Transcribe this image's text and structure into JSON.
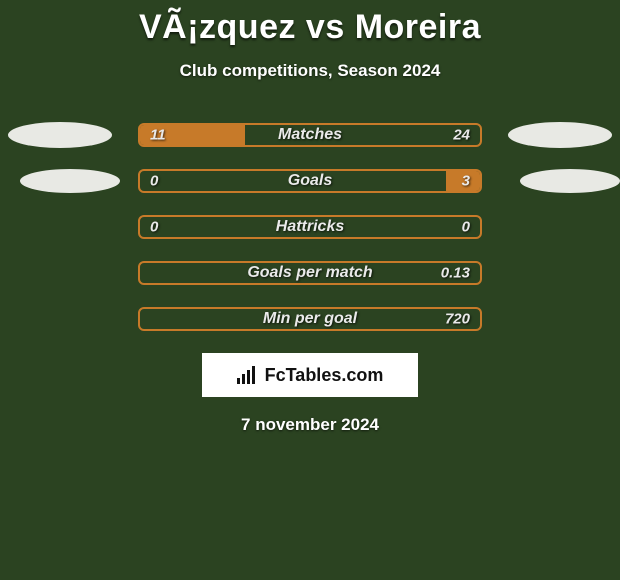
{
  "colors": {
    "background": "#2b4321",
    "bar_border": "#c77a29",
    "bar_fill": "#c77a29",
    "ellipse": "#e8e9e4",
    "text": "#ffffff",
    "brand_bg": "#ffffff",
    "brand_text": "#111111"
  },
  "header": {
    "title": "VÃ¡zquez vs Moreira",
    "subtitle": "Club competitions, Season 2024"
  },
  "rows": [
    {
      "label": "Matches",
      "left_value": "11",
      "right_value": "24",
      "left_fill_pct": 31,
      "right_fill_pct": 0,
      "left_ellipse": "main",
      "right_ellipse": "main"
    },
    {
      "label": "Goals",
      "left_value": "0",
      "right_value": "3",
      "left_fill_pct": 0,
      "right_fill_pct": 10,
      "left_ellipse": "small",
      "right_ellipse": "small"
    },
    {
      "label": "Hattricks",
      "left_value": "0",
      "right_value": "0",
      "left_fill_pct": 0,
      "right_fill_pct": 0,
      "left_ellipse": null,
      "right_ellipse": null
    },
    {
      "label": "Goals per match",
      "left_value": "",
      "right_value": "0.13",
      "left_fill_pct": 0,
      "right_fill_pct": 0,
      "left_ellipse": null,
      "right_ellipse": null
    },
    {
      "label": "Min per goal",
      "left_value": "",
      "right_value": "720",
      "left_fill_pct": 0,
      "right_fill_pct": 0,
      "left_ellipse": null,
      "right_ellipse": null
    }
  ],
  "brand": {
    "text": "FcTables.com"
  },
  "footer_date": "7 november 2024",
  "typography": {
    "title_fontsize": 34,
    "subtitle_fontsize": 17,
    "label_fontsize": 16,
    "value_fontsize": 15,
    "brand_fontsize": 18,
    "date_fontsize": 17
  }
}
